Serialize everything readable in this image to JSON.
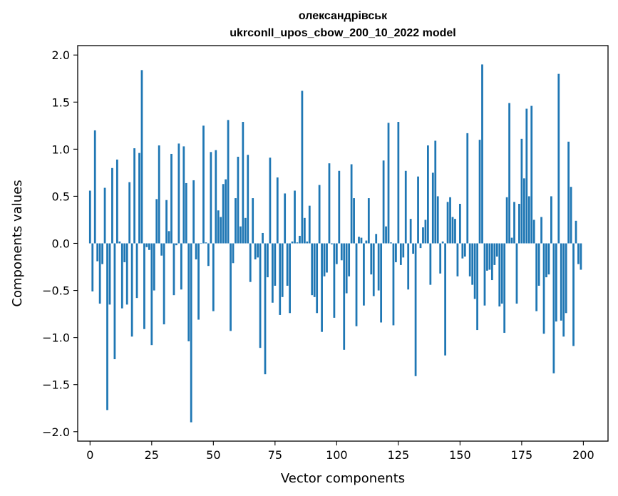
{
  "chart_data": {
    "type": "bar",
    "title": "олександрівськ",
    "subtitle": "ukrconll_upos_cbow_200_10_2022 model",
    "xlabel": "Vector components",
    "ylabel": "Components values",
    "xlim": [
      -5,
      210
    ],
    "ylim": [
      -2.1,
      2.1
    ],
    "xticks": [
      0,
      25,
      50,
      75,
      100,
      125,
      150,
      175,
      200
    ],
    "xtick_labels": [
      "0",
      "25",
      "50",
      "75",
      "100",
      "125",
      "150",
      "175",
      "200"
    ],
    "yticks": [
      -2.0,
      -1.5,
      -1.0,
      -0.5,
      0.0,
      0.5,
      1.0,
      1.5,
      2.0
    ],
    "ytick_labels": [
      "−2.0",
      "−1.5",
      "−1.0",
      "−0.5",
      "0.0",
      "0.5",
      "1.0",
      "1.5",
      "2.0"
    ],
    "grid": false,
    "bar_color": "#1f77b4",
    "values": [
      0.56,
      -0.51,
      1.2,
      -0.19,
      -0.64,
      -0.22,
      0.59,
      -1.77,
      -0.65,
      0.8,
      -1.23,
      0.89,
      0.02,
      -0.69,
      -0.2,
      -0.65,
      0.65,
      -0.99,
      1.01,
      -0.58,
      0.96,
      1.84,
      -0.91,
      -0.04,
      -0.07,
      -1.08,
      -0.5,
      0.47,
      1.04,
      -0.13,
      -0.86,
      0.46,
      0.13,
      0.95,
      -0.55,
      -0.02,
      1.06,
      -0.49,
      1.03,
      0.64,
      -1.04,
      -1.9,
      0.67,
      -0.17,
      -0.81,
      0.0,
      1.25,
      0.01,
      -0.24,
      0.97,
      -0.72,
      0.99,
      0.35,
      0.28,
      0.63,
      0.68,
      1.31,
      -0.93,
      -0.21,
      0.48,
      0.92,
      0.18,
      1.29,
      0.27,
      0.94,
      -0.41,
      0.48,
      -0.17,
      -0.15,
      -1.11,
      0.11,
      -1.39,
      -0.36,
      0.91,
      -0.63,
      -0.45,
      0.7,
      -0.76,
      -0.57,
      0.53,
      -0.45,
      -0.74,
      0.02,
      0.56,
      0.01,
      0.08,
      1.62,
      0.27,
      0.02,
      0.4,
      -0.55,
      -0.57,
      -0.74,
      0.62,
      -0.94,
      -0.35,
      -0.31,
      0.85,
      -0.01,
      -0.79,
      -0.22,
      0.77,
      -0.18,
      -1.13,
      -0.53,
      -0.35,
      0.84,
      0.48,
      -0.88,
      0.07,
      0.06,
      -0.66,
      0.03,
      0.48,
      -0.33,
      -0.56,
      0.1,
      -0.5,
      -0.84,
      0.88,
      0.18,
      1.28,
      0.01,
      -0.87,
      -0.2,
      1.29,
      -0.23,
      -0.15,
      0.77,
      -0.49,
      0.26,
      -0.11,
      -1.41,
      0.71,
      -0.05,
      0.17,
      0.25,
      1.04,
      -0.44,
      0.75,
      1.09,
      0.5,
      -0.32,
      0.02,
      -1.19,
      0.44,
      0.49,
      0.28,
      0.26,
      -0.35,
      0.42,
      -0.16,
      -0.14,
      1.17,
      -0.35,
      -0.44,
      -0.59,
      -0.92,
      1.1,
      1.9,
      -0.66,
      -0.29,
      -0.28,
      -0.39,
      -0.23,
      -0.14,
      -0.67,
      -0.64,
      -0.95,
      0.49,
      1.49,
      0.06,
      0.44,
      -0.64,
      0.42,
      1.11,
      0.69,
      1.43,
      0.5,
      1.46,
      0.25,
      -0.72,
      -0.45,
      0.28,
      -0.96,
      -0.36,
      -0.33,
      0.5,
      -1.38,
      -0.83,
      1.8,
      -0.82,
      -0.99,
      -0.74,
      1.08,
      0.6,
      -1.09,
      0.24,
      -0.22,
      -0.28
    ]
  }
}
